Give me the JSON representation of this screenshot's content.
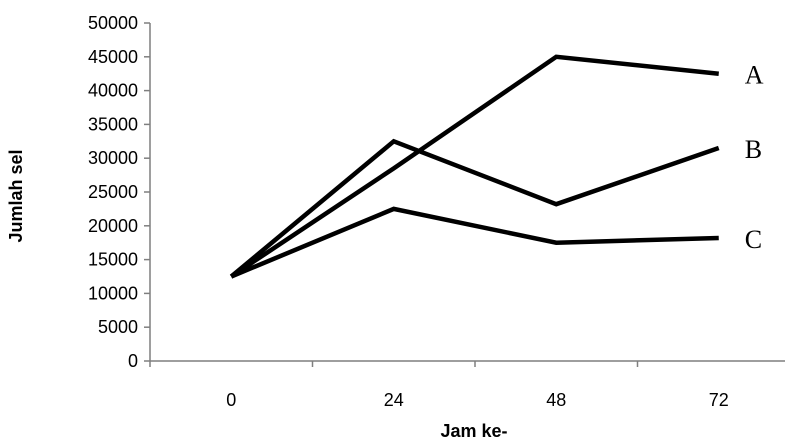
{
  "chart_data": {
    "type": "line",
    "title": "",
    "xlabel": "Jam ke-",
    "ylabel": "Jumlah sel",
    "categories": [
      "0",
      "24",
      "48",
      "72"
    ],
    "ylim": [
      0,
      50000
    ],
    "yticks": [
      0,
      5000,
      10000,
      15000,
      20000,
      25000,
      30000,
      35000,
      40000,
      45000,
      50000
    ],
    "grid": false,
    "series": [
      {
        "name": "A",
        "values": [
          12500,
          28500,
          45000,
          42500
        ]
      },
      {
        "name": "B",
        "values": [
          12500,
          32500,
          23200,
          31500
        ]
      },
      {
        "name": "C",
        "values": [
          12500,
          22500,
          17500,
          18200
        ]
      }
    ]
  }
}
